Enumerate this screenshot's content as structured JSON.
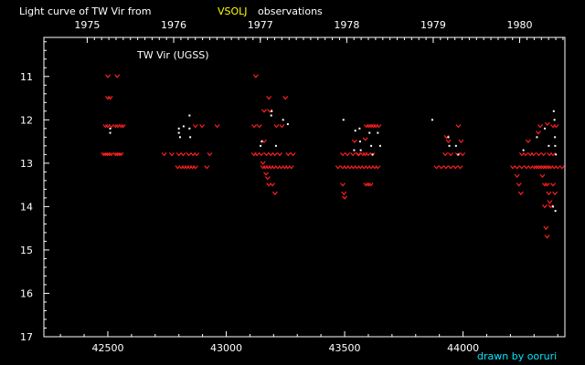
{
  "chart_data": {
    "type": "scatter",
    "title_prefix": "Light curve of TW Vir from",
    "title_source": "VSOLJ",
    "title_suffix": "observations",
    "label": "TW Vir (UGSS)",
    "credit": "drawn by ooruri",
    "xlim": [
      42230,
      44430
    ],
    "ylim": [
      17,
      10.1
    ],
    "y_reversed": true,
    "x_ticks": [
      42500,
      43000,
      43500,
      44000
    ],
    "y_ticks": [
      11,
      12,
      13,
      14,
      15,
      16,
      17
    ],
    "year_ticks": [
      {
        "label": "1975",
        "jd": 42413
      },
      {
        "label": "1976",
        "jd": 42778
      },
      {
        "label": "1977",
        "jd": 43144
      },
      {
        "label": "1978",
        "jd": 43509
      },
      {
        "label": "1979",
        "jd": 43874
      },
      {
        "label": "1980",
        "jd": 44239
      }
    ],
    "colors": {
      "fainter_than": "#ff2020",
      "observation": "#ffffff",
      "title_source": "#ffff00",
      "credit": "#00e5ff",
      "axis": "#ffffff"
    },
    "series": [
      {
        "name": "",
        "marker": "v",
        "color": "#ff2020",
        "points": [
          [
            42482,
            12.8
          ],
          [
            42490,
            12.8
          ],
          [
            42498,
            12.8
          ],
          [
            42506,
            12.8
          ],
          [
            42515,
            12.8
          ],
          [
            42532,
            12.8
          ],
          [
            42540,
            12.8
          ],
          [
            42548,
            12.8
          ],
          [
            42556,
            12.8
          ],
          [
            42490,
            12.15
          ],
          [
            42500,
            12.15
          ],
          [
            42515,
            12.15
          ],
          [
            42532,
            12.15
          ],
          [
            42542,
            12.15
          ],
          [
            42556,
            12.15
          ],
          [
            42565,
            12.15
          ],
          [
            42500,
            11.0
          ],
          [
            42540,
            11.0
          ],
          [
            42500,
            11.5
          ],
          [
            42510,
            11.5
          ],
          [
            42738,
            12.8
          ],
          [
            42770,
            12.8
          ],
          [
            42800,
            12.8
          ],
          [
            42818,
            12.8
          ],
          [
            42842,
            12.8
          ],
          [
            42860,
            12.8
          ],
          [
            42875,
            12.8
          ],
          [
            42930,
            12.8
          ],
          [
            42795,
            13.1
          ],
          [
            42810,
            13.1
          ],
          [
            42822,
            13.1
          ],
          [
            42834,
            13.1
          ],
          [
            42846,
            13.1
          ],
          [
            42858,
            13.1
          ],
          [
            42870,
            13.1
          ],
          [
            42918,
            13.1
          ],
          [
            42870,
            12.15
          ],
          [
            42898,
            12.15
          ],
          [
            42962,
            12.15
          ],
          [
            43117,
            12.8
          ],
          [
            43130,
            12.8
          ],
          [
            43148,
            12.8
          ],
          [
            43170,
            12.8
          ],
          [
            43188,
            12.8
          ],
          [
            43206,
            12.8
          ],
          [
            43226,
            12.8
          ],
          [
            43262,
            12.8
          ],
          [
            43282,
            12.8
          ],
          [
            43118,
            12.15
          ],
          [
            43140,
            12.15
          ],
          [
            43212,
            12.15
          ],
          [
            43235,
            12.15
          ],
          [
            43155,
            13.1
          ],
          [
            43165,
            13.1
          ],
          [
            43177,
            13.1
          ],
          [
            43189,
            13.1
          ],
          [
            43202,
            13.1
          ],
          [
            43217,
            13.1
          ],
          [
            43232,
            13.1
          ],
          [
            43247,
            13.1
          ],
          [
            43260,
            13.1
          ],
          [
            43275,
            13.1
          ],
          [
            43155,
            13.0
          ],
          [
            43168,
            13.25
          ],
          [
            43175,
            13.35
          ],
          [
            43180,
            13.5
          ],
          [
            43195,
            13.5
          ],
          [
            43206,
            13.7
          ],
          [
            43125,
            11.0
          ],
          [
            43180,
            11.5
          ],
          [
            43250,
            11.5
          ],
          [
            43160,
            11.8
          ],
          [
            43184,
            11.8
          ],
          [
            43160,
            12.5
          ],
          [
            43472,
            13.1
          ],
          [
            43492,
            13.1
          ],
          [
            43507,
            13.1
          ],
          [
            43522,
            13.1
          ],
          [
            43537,
            13.1
          ],
          [
            43552,
            13.1
          ],
          [
            43567,
            13.1
          ],
          [
            43582,
            13.1
          ],
          [
            43597,
            13.1
          ],
          [
            43612,
            13.1
          ],
          [
            43627,
            13.1
          ],
          [
            43640,
            13.1
          ],
          [
            43492,
            12.8
          ],
          [
            43512,
            12.8
          ],
          [
            43535,
            12.8
          ],
          [
            43560,
            12.8
          ],
          [
            43577,
            12.8
          ],
          [
            43587,
            12.8
          ],
          [
            43600,
            12.8
          ],
          [
            43617,
            12.8
          ],
          [
            43592,
            12.15
          ],
          [
            43602,
            12.15
          ],
          [
            43612,
            12.15
          ],
          [
            43622,
            12.15
          ],
          [
            43632,
            12.15
          ],
          [
            43644,
            12.15
          ],
          [
            43542,
            12.5
          ],
          [
            43557,
            12.8
          ],
          [
            43587,
            12.45
          ],
          [
            43492,
            13.5
          ],
          [
            43497,
            13.7
          ],
          [
            43500,
            13.8
          ],
          [
            43590,
            13.5
          ],
          [
            43600,
            13.5
          ],
          [
            43610,
            13.5
          ],
          [
            43888,
            13.1
          ],
          [
            43908,
            13.1
          ],
          [
            43928,
            13.1
          ],
          [
            43948,
            13.1
          ],
          [
            43968,
            13.1
          ],
          [
            43988,
            13.1
          ],
          [
            43925,
            12.8
          ],
          [
            43948,
            12.8
          ],
          [
            43978,
            12.8
          ],
          [
            43998,
            12.8
          ],
          [
            43930,
            12.4
          ],
          [
            43938,
            12.5
          ],
          [
            43980,
            12.15
          ],
          [
            43992,
            12.5
          ],
          [
            44210,
            13.1
          ],
          [
            44228,
            13.1
          ],
          [
            44248,
            13.1
          ],
          [
            44268,
            13.1
          ],
          [
            44285,
            13.1
          ],
          [
            44300,
            13.1
          ],
          [
            44310,
            13.1
          ],
          [
            44320,
            13.1
          ],
          [
            44330,
            13.1
          ],
          [
            44340,
            13.1
          ],
          [
            44350,
            13.1
          ],
          [
            44360,
            13.1
          ],
          [
            44370,
            13.1
          ],
          [
            44385,
            13.1
          ],
          [
            44400,
            13.1
          ],
          [
            44418,
            13.1
          ],
          [
            44228,
            13.3
          ],
          [
            44236,
            13.5
          ],
          [
            44244,
            13.7
          ],
          [
            44248,
            12.8
          ],
          [
            44264,
            12.8
          ],
          [
            44284,
            12.8
          ],
          [
            44298,
            12.8
          ],
          [
            44320,
            12.8
          ],
          [
            44340,
            12.8
          ],
          [
            44365,
            12.8
          ],
          [
            44380,
            12.8
          ],
          [
            44275,
            12.5
          ],
          [
            44318,
            12.3
          ],
          [
            44326,
            12.15
          ],
          [
            44356,
            12.1
          ],
          [
            44380,
            12.15
          ],
          [
            44393,
            12.15
          ],
          [
            44335,
            13.3
          ],
          [
            44345,
            13.5
          ],
          [
            44355,
            13.5
          ],
          [
            44362,
            13.7
          ],
          [
            44366,
            13.9
          ],
          [
            44370,
            14.0
          ],
          [
            44345,
            14.0
          ],
          [
            44350,
            14.5
          ],
          [
            44355,
            14.7
          ],
          [
            44380,
            13.5
          ],
          [
            44388,
            13.7
          ]
        ]
      },
      {
        "name": "",
        "marker": "dot",
        "color": "#ffffff",
        "points": [
          [
            42510,
            12.2
          ],
          [
            42510,
            12.3
          ],
          [
            42800,
            12.2
          ],
          [
            42800,
            12.3
          ],
          [
            42805,
            12.4
          ],
          [
            42820,
            12.15
          ],
          [
            42845,
            11.9
          ],
          [
            42845,
            12.2
          ],
          [
            42848,
            12.4
          ],
          [
            43145,
            12.6
          ],
          [
            43150,
            12.5
          ],
          [
            43192,
            11.8
          ],
          [
            43190,
            11.9
          ],
          [
            43240,
            12.0
          ],
          [
            43260,
            12.1
          ],
          [
            43210,
            12.6
          ],
          [
            43495,
            12.0
          ],
          [
            43540,
            12.7
          ],
          [
            43545,
            12.25
          ],
          [
            43563,
            12.2
          ],
          [
            43565,
            12.5
          ],
          [
            43568,
            12.7
          ],
          [
            43605,
            12.3
          ],
          [
            43612,
            12.6
          ],
          [
            43618,
            12.8
          ],
          [
            43640,
            12.3
          ],
          [
            43650,
            12.6
          ],
          [
            43870,
            12.0
          ],
          [
            43938,
            12.4
          ],
          [
            43942,
            12.6
          ],
          [
            43970,
            12.6
          ],
          [
            43980,
            12.8
          ],
          [
            44255,
            12.7
          ],
          [
            44312,
            12.4
          ],
          [
            44345,
            12.2
          ],
          [
            44362,
            12.6
          ],
          [
            44383,
            11.8
          ],
          [
            44386,
            12.0
          ],
          [
            44388,
            12.4
          ],
          [
            44389,
            12.6
          ],
          [
            44392,
            12.8
          ],
          [
            44380,
            14.0
          ],
          [
            44390,
            14.1
          ]
        ]
      }
    ]
  }
}
